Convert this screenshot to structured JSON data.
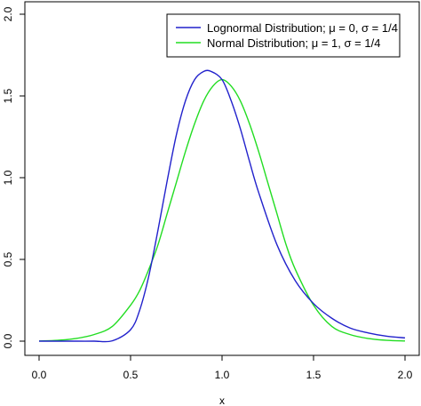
{
  "chart_data": {
    "type": "line",
    "title": "",
    "xlabel": "x",
    "ylabel": "",
    "xlim": [
      0,
      2
    ],
    "ylim": [
      0,
      2
    ],
    "xticks": [
      0,
      0.5,
      1,
      1.5,
      2
    ],
    "xtick_labels": [
      "0.0",
      "0.5",
      "1.0",
      "1.5",
      "2.0"
    ],
    "yticks": [
      0,
      0.5,
      1,
      1.5,
      2
    ],
    "ytick_labels": [
      "0.0",
      "0.5",
      "1.0",
      "1.5",
      "2.0"
    ],
    "grid": false,
    "legend_position": "top-right",
    "series": [
      {
        "name": "Lognormal Distribution; μ = 0, σ = 1/4",
        "color": "#2222cc",
        "x": [
          0.0,
          0.1,
          0.2,
          0.3,
          0.4,
          0.5,
          0.55,
          0.6,
          0.65,
          0.7,
          0.75,
          0.8,
          0.85,
          0.9,
          0.94,
          1.0,
          1.05,
          1.1,
          1.15,
          1.2,
          1.3,
          1.4,
          1.5,
          1.6,
          1.7,
          1.8,
          1.9,
          2.0
        ],
        "y": [
          0.0,
          0.0,
          0.0,
          0.0,
          0.002,
          0.07,
          0.19,
          0.4,
          0.68,
          0.98,
          1.26,
          1.47,
          1.6,
          1.65,
          1.65,
          1.6,
          1.47,
          1.3,
          1.1,
          0.91,
          0.59,
          0.37,
          0.23,
          0.14,
          0.08,
          0.05,
          0.03,
          0.02
        ]
      },
      {
        "name": "Normal Distribution; μ = 1, σ = 1/4",
        "color": "#22dd22",
        "x": [
          0.0,
          0.1,
          0.2,
          0.3,
          0.4,
          0.5,
          0.55,
          0.6,
          0.65,
          0.7,
          0.75,
          0.8,
          0.85,
          0.9,
          0.95,
          1.0,
          1.05,
          1.1,
          1.15,
          1.2,
          1.25,
          1.3,
          1.35,
          1.4,
          1.5,
          1.6,
          1.7,
          1.8,
          1.9,
          2.0
        ],
        "y": [
          0.001,
          0.005,
          0.016,
          0.04,
          0.09,
          0.22,
          0.31,
          0.44,
          0.59,
          0.78,
          0.97,
          1.16,
          1.33,
          1.47,
          1.56,
          1.6,
          1.56,
          1.47,
          1.33,
          1.16,
          0.97,
          0.78,
          0.59,
          0.44,
          0.22,
          0.09,
          0.04,
          0.016,
          0.005,
          0.001
        ]
      }
    ]
  }
}
